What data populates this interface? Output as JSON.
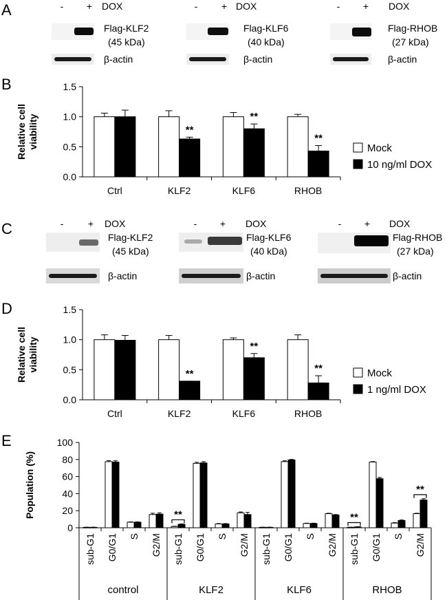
{
  "panels": {
    "A": {
      "letter": "A",
      "lane_labels": [
        "-",
        "+"
      ],
      "treatment": "DOX",
      "blots": [
        {
          "protein": "Flag-KLF2",
          "size": "(45 kDa)",
          "loading": "β-actin"
        },
        {
          "protein": "Flag-KLF6",
          "size": "(40 kDa)",
          "loading": "β-actin"
        },
        {
          "protein": "Flag-RHOB",
          "size": "(27 kDa)",
          "loading": "β-actin"
        }
      ]
    },
    "B": {
      "letter": "B"
    },
    "C": {
      "letter": "C",
      "lane_labels": [
        "-",
        "+"
      ],
      "treatment": "DOX",
      "blots": [
        {
          "protein": "Flag-KLF2",
          "size": "(45 kDa)",
          "loading": "β-actin"
        },
        {
          "protein": "Flag-KLF6",
          "size": "(40 kDa)",
          "loading": "β-actin"
        },
        {
          "protein": "Flag-RHOB",
          "size": "(27 kDa)",
          "loading": "β-actin"
        }
      ]
    },
    "D": {
      "letter": "D"
    },
    "E": {
      "letter": "E"
    }
  },
  "chart_data": [
    {
      "panel": "B",
      "type": "bar",
      "ylabel": "Relative cell viability",
      "ylim": [
        0,
        1.5
      ],
      "yticks": [
        "0.0",
        "0.5",
        "1.0",
        "1.5"
      ],
      "categories": [
        "Ctrl",
        "KLF2",
        "KLF6",
        "RHOB"
      ],
      "series": [
        {
          "name": "Mock",
          "fill": "#ffffff",
          "values": [
            1.0,
            1.0,
            1.0,
            1.0
          ],
          "errors": [
            0.06,
            0.1,
            0.07,
            0.04
          ]
        },
        {
          "name": "10 ng/ml DOX",
          "fill": "#000000",
          "values": [
            1.0,
            0.63,
            0.8,
            0.43
          ],
          "errors": [
            0.11,
            0.03,
            0.08,
            0.09
          ]
        }
      ],
      "significance": [
        "",
        "**",
        "**",
        "**"
      ],
      "legend": "right"
    },
    {
      "panel": "D",
      "type": "bar",
      "ylabel": "Relative cell viability",
      "ylim": [
        0,
        1.5
      ],
      "yticks": [
        "0.0",
        "0.5",
        "1.0",
        "1.5"
      ],
      "categories": [
        "Ctrl",
        "KLF2",
        "KLF6",
        "RHOB"
      ],
      "series": [
        {
          "name": "Mock",
          "fill": "#ffffff",
          "values": [
            1.0,
            1.0,
            1.0,
            1.0
          ],
          "errors": [
            0.08,
            0.07,
            0.03,
            0.08
          ]
        },
        {
          "name": "1 ng/ml DOX",
          "fill": "#000000",
          "values": [
            0.99,
            0.31,
            0.7,
            0.28
          ],
          "errors": [
            0.08,
            0.0,
            0.07,
            0.12
          ]
        }
      ],
      "significance": [
        "",
        "**",
        "**",
        "**"
      ],
      "legend": "right"
    },
    {
      "panel": "E",
      "type": "bar",
      "ylabel": "Population (%)",
      "ylim": [
        0,
        100
      ],
      "yticks": [
        "0",
        "20",
        "40",
        "60",
        "80",
        "100"
      ],
      "groups": [
        {
          "name": "control",
          "phases": [
            "sub-G1",
            "G0/G1",
            "S",
            "G2/M"
          ],
          "white": [
            0.5,
            77.5,
            6.5,
            15.5
          ],
          "white_err": [
            0.2,
            1.2,
            0.4,
            1.5
          ],
          "black": [
            0.5,
            77.0,
            6.5,
            16.0
          ],
          "black_err": [
            0.2,
            1.5,
            0.4,
            1.5
          ],
          "significance": [
            false,
            false,
            false,
            false
          ]
        },
        {
          "name": "KLF2",
          "phases": [
            "sub-G1",
            "G0/G1",
            "S",
            "G2/M"
          ],
          "white": [
            1.5,
            75.5,
            4.5,
            17.5
          ],
          "white_err": [
            0.3,
            1.2,
            0.4,
            1.0
          ],
          "black": [
            4.0,
            76.0,
            4.5,
            15.5
          ],
          "black_err": [
            0.5,
            1.5,
            0.4,
            2.5
          ],
          "significance": [
            true,
            false,
            false,
            false
          ]
        },
        {
          "name": "KLF6",
          "phases": [
            "sub-G1",
            "G0/G1",
            "S",
            "G2/M"
          ],
          "white": [
            0.5,
            77.5,
            5.0,
            16.5
          ],
          "white_err": [
            0.2,
            1.0,
            0.4,
            0.5
          ],
          "black": [
            0.5,
            79.5,
            5.0,
            15.0
          ],
          "black_err": [
            0.2,
            0.6,
            0.4,
            0.5
          ],
          "significance": [
            false,
            false,
            false,
            false
          ]
        },
        {
          "name": "RHOB",
          "phases": [
            "sub-G1",
            "G0/G1",
            "S",
            "G2/M"
          ],
          "white": [
            0.5,
            77.0,
            5.5,
            16.5
          ],
          "white_err": [
            0.2,
            0.5,
            0.5,
            0.5
          ],
          "black": [
            1.0,
            57.5,
            8.5,
            32.5
          ],
          "black_err": [
            0.2,
            1.5,
            0.6,
            1.5
          ],
          "significance": [
            true,
            false,
            false,
            true
          ]
        }
      ]
    }
  ]
}
